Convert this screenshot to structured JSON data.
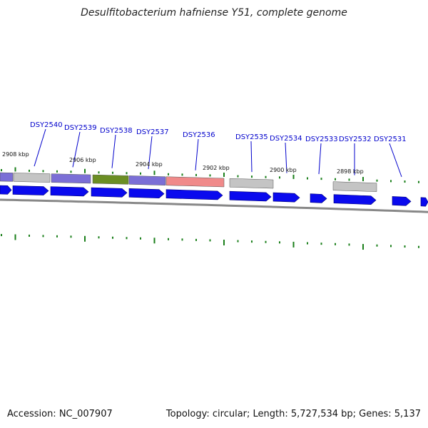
{
  "title": "Desulfitobacterium hafniense Y51, complete genome",
  "footer": {
    "accession": "Accession: NC_007907",
    "topology": "Topology: circular; Length: 5,727,534 bp; Genes: 5,137"
  },
  "kbp_labels": [
    "2908 kbp",
    "2906 kbp",
    "2904 kbp",
    "2902 kbp",
    "2900 kbp",
    "2898 kbp"
  ],
  "gene_labels": [
    "DSY2540",
    "DSY2539",
    "DSY2538",
    "DSY2537",
    "DSY2536",
    "DSY2535",
    "DSY2534",
    "DSY2533",
    "DSY2532",
    "DSY2531"
  ],
  "colors": {
    "gene_arrow": "#0a0aee",
    "backbone": "#888888",
    "tick": "#1a7f1a",
    "cog_purple": "#7b6fd6",
    "cog_gray": "#c4c4c4",
    "cog_green": "#6b8e23",
    "cog_pink": "#f08a8a"
  }
}
